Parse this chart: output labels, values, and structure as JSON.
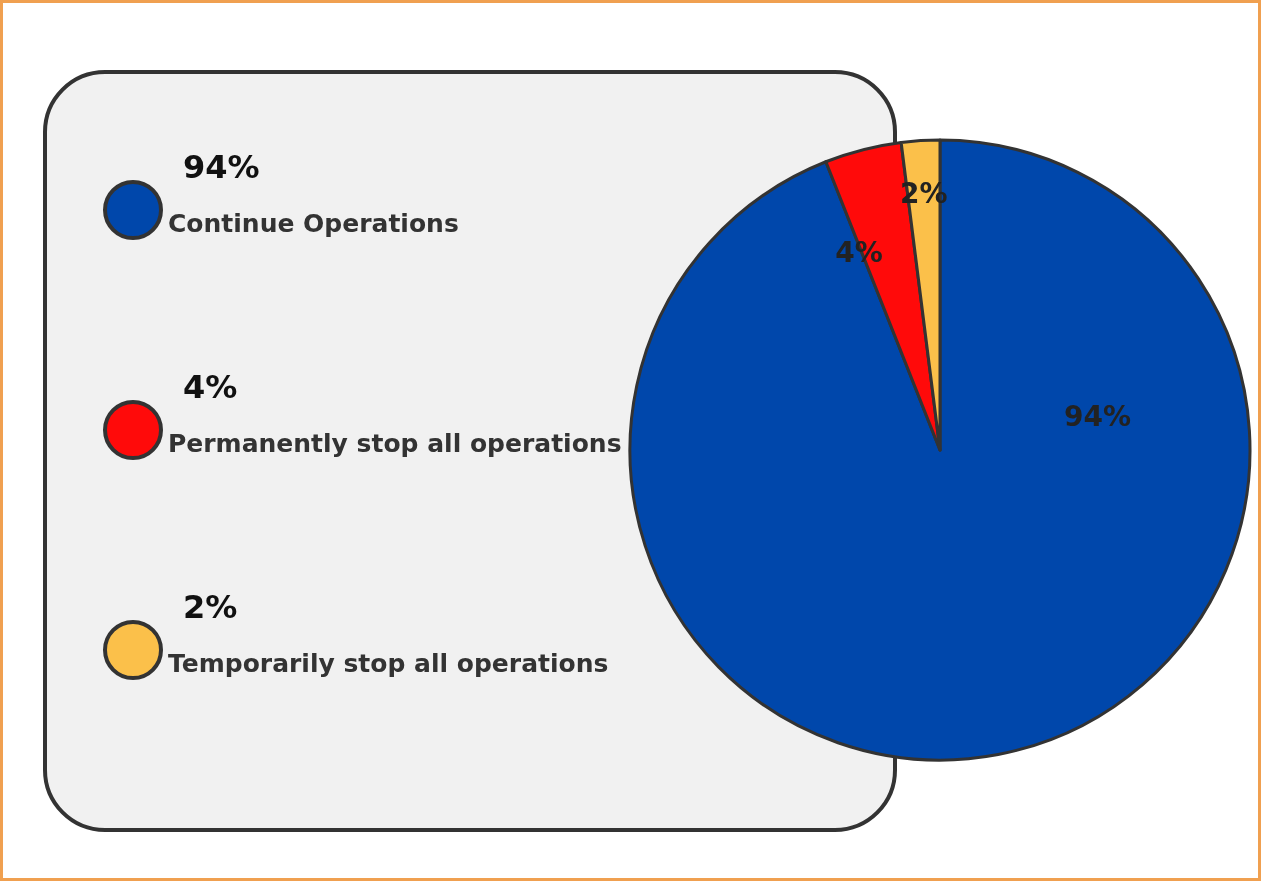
{
  "chart_data": {
    "type": "pie",
    "categories": [
      "Continue Operations",
      "Permanently stop all operations",
      "Temporarily stop all operations"
    ],
    "values": [
      94,
      4,
      2
    ],
    "colors": [
      "#0047ab",
      "#ff0a0a",
      "#fbc04a"
    ],
    "value_labels": [
      "94%",
      "4%",
      "2%"
    ],
    "legend": "left"
  }
}
